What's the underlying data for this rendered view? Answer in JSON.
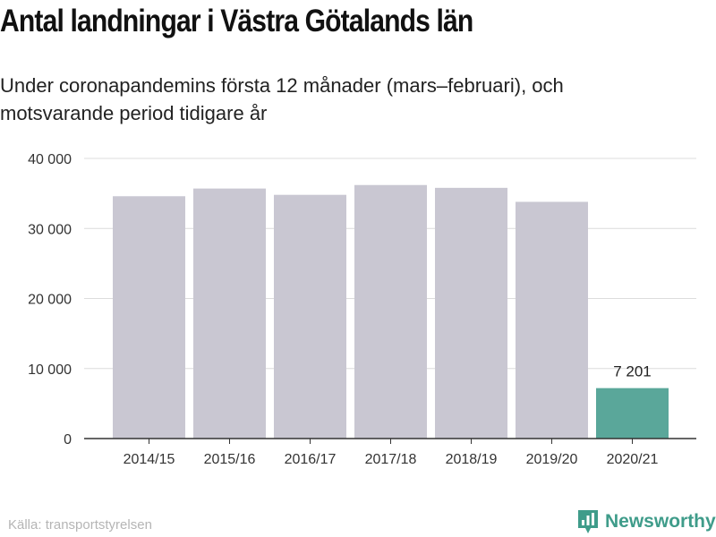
{
  "header": {
    "title": "Antal landningar i Västra Götalands län",
    "subtitle": "Under coronapandemins första 12 månader (mars–februari), och motsvarande period tidigare år"
  },
  "footer": {
    "source": "Källa: transportstyrelsen",
    "brand": "Newsworthy"
  },
  "colors": {
    "bar_default": "#c9c7d2",
    "bar_highlight": "#5aa79a",
    "grid": "#dcdcdc",
    "axis": "#333333",
    "brand": "#3f9c8a"
  },
  "chart_data": {
    "type": "bar",
    "categories": [
      "2014/15",
      "2015/16",
      "2016/17",
      "2017/18",
      "2018/19",
      "2019/20",
      "2020/21"
    ],
    "values": [
      34600,
      35700,
      34800,
      36200,
      35800,
      33800,
      7201
    ],
    "highlight_index": 6,
    "data_labels": [
      {
        "index": 6,
        "text": "7 201"
      }
    ],
    "ylim": [
      0,
      40000
    ],
    "yticks": [
      0,
      10000,
      20000,
      30000,
      40000
    ],
    "ytick_labels": [
      "0",
      "10 000",
      "20 000",
      "30 000",
      "40 000"
    ],
    "grid": true,
    "legend": "none"
  }
}
